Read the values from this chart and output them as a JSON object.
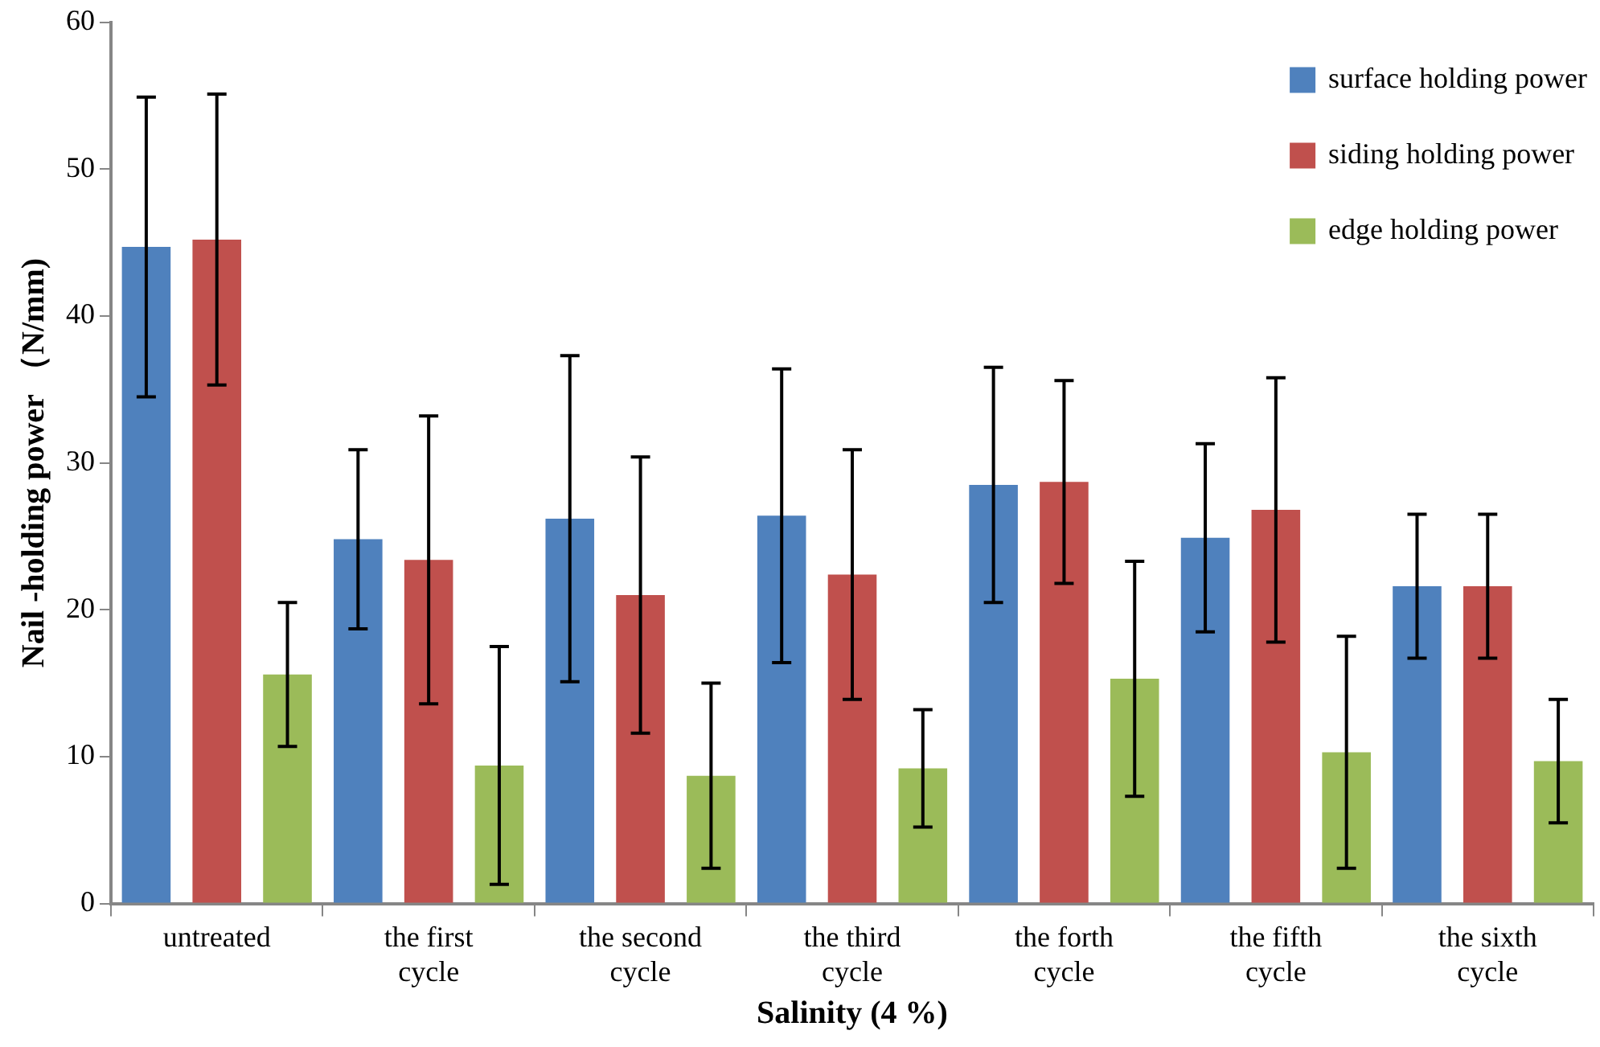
{
  "chart_data": {
    "type": "bar",
    "xlabel": "Salinity (4 %)",
    "ylabel": "Nail -holding power （N/mm)",
    "categories": [
      "untreated",
      "the first cycle",
      "the second cycle",
      "the third cycle",
      "the forth cycle",
      "the fifth cycle",
      "the sixth cycle"
    ],
    "series": [
      {
        "name": "surface holding power",
        "color": "#4f81bd",
        "values": [
          44.7,
          24.8,
          26.2,
          26.4,
          28.5,
          24.9,
          21.6
        ],
        "errors": [
          10.2,
          6.1,
          11.1,
          10,
          8,
          6.4,
          4.9
        ]
      },
      {
        "name": "siding holding power",
        "color": "#c0504d",
        "values": [
          45.2,
          23.4,
          21.0,
          22.4,
          28.7,
          26.8,
          21.6
        ],
        "errors": [
          9.9,
          9.8,
          9.4,
          8.5,
          6.9,
          9,
          4.9
        ]
      },
      {
        "name": "edge holding power",
        "color": "#9bbb59",
        "values": [
          15.6,
          9.4,
          8.7,
          9.2,
          15.3,
          10.3,
          9.7
        ],
        "errors": [
          4.9,
          8.1,
          6.3,
          4,
          8,
          7.9,
          4.2
        ]
      }
    ],
    "ylim": [
      0,
      60
    ],
    "yticks": [
      0,
      10,
      20,
      30,
      40,
      50,
      60
    ],
    "grid": false,
    "legend": "top right"
  }
}
